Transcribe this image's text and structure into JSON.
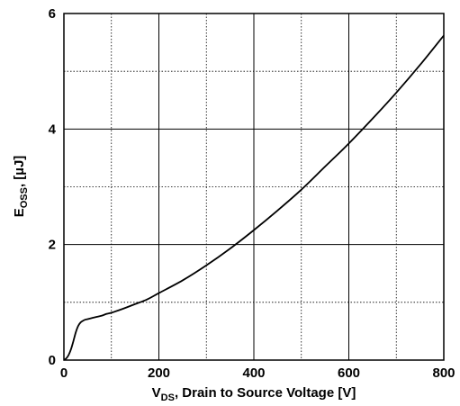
{
  "chart_data": {
    "type": "line",
    "title": "",
    "xlabel": {
      "prefix": "V",
      "subscript": "DS",
      "suffix": ", Drain to Source Voltage [V]"
    },
    "ylabel": {
      "prefix": "E",
      "subscript": "OSS",
      "suffix": ", [µJ]"
    },
    "xlim": [
      0,
      800
    ],
    "ylim": [
      0,
      6
    ],
    "x_ticks": [
      {
        "value": 0,
        "label": "0"
      },
      {
        "value": 200,
        "label": "200"
      },
      {
        "value": 400,
        "label": "400"
      },
      {
        "value": 600,
        "label": "600"
      },
      {
        "value": 800,
        "label": "800"
      }
    ],
    "y_ticks": [
      {
        "value": 0,
        "label": "0"
      },
      {
        "value": 2,
        "label": "2"
      },
      {
        "value": 4,
        "label": "4"
      },
      {
        "value": 6,
        "label": "6"
      }
    ],
    "x_major_grid": [
      200,
      400,
      600
    ],
    "x_minor_grid": [
      100,
      300,
      500,
      700
    ],
    "y_major_grid": [
      2,
      4
    ],
    "y_minor_grid": [
      1,
      3,
      5
    ],
    "grid": true,
    "legend": "none",
    "colors": {
      "line": "#000000",
      "grid": "#000000",
      "axis": "#000000"
    },
    "series": [
      {
        "name": "",
        "x": [
          0,
          5,
          10,
          15,
          20,
          25,
          30,
          35,
          40,
          45,
          50,
          60,
          70,
          80,
          90,
          100,
          125,
          150,
          175,
          200,
          250,
          300,
          350,
          400,
          450,
          500,
          550,
          600,
          650,
          700,
          750,
          800
        ],
        "y": [
          0.0,
          0.03,
          0.09,
          0.19,
          0.33,
          0.48,
          0.59,
          0.65,
          0.68,
          0.7,
          0.71,
          0.73,
          0.75,
          0.77,
          0.8,
          0.82,
          0.89,
          0.97,
          1.05,
          1.16,
          1.38,
          1.64,
          1.93,
          2.25,
          2.59,
          2.95,
          3.35,
          3.75,
          4.18,
          4.63,
          5.11,
          5.62
        ]
      }
    ]
  }
}
